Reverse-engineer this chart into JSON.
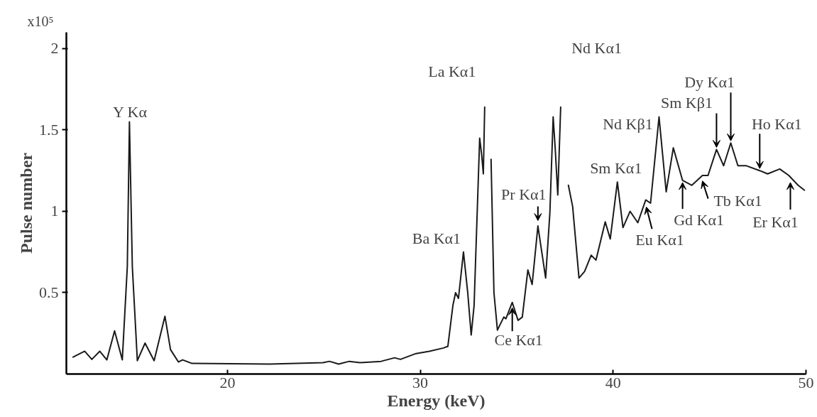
{
  "chart_data": {
    "type": "line",
    "xlabel": "Energy (keV)",
    "ylabel": "Pulse number",
    "xlim": [
      11.65,
      50
    ],
    "ylim": [
      0,
      2.1
    ],
    "xticks": [
      20,
      30,
      40,
      50
    ],
    "yticks": [
      0.5,
      1,
      1.5,
      2
    ],
    "grid": false,
    "marker": "none",
    "line_style": "solid",
    "series": [
      {
        "color": "#1a1a1a",
        "x": [
          12.0,
          12.6,
          12.97,
          13.38,
          13.75,
          14.15,
          14.55,
          14.81,
          14.92,
          15.07,
          15.33,
          15.73,
          16.2,
          16.76,
          17.05,
          17.46,
          17.68,
          18.16,
          22.2,
          24.96,
          25.29,
          25.77,
          26.32,
          26.87,
          27.97,
          28.67,
          28.97,
          29.78,
          30.47,
          31.2,
          31.43,
          31.69,
          31.83,
          31.98,
          32.24,
          32.46,
          32.64,
          32.79,
          33.08,
          33.18,
          33.27,
          33.34,
          33.45,
          33.56,
          33.67,
          33.82,
          34.0,
          34.33,
          34.44,
          34.77,
          35.07,
          35.29,
          35.58,
          35.8,
          36.1,
          36.5,
          36.72,
          36.89,
          37.0,
          37.13,
          37.28,
          37.39,
          37.53,
          37.68,
          37.9,
          38.23,
          38.52,
          38.86,
          39.11,
          39.59,
          39.85,
          40.22,
          40.51,
          40.88,
          41.28,
          41.69,
          41.94,
          42.38,
          42.75,
          43.12,
          43.6,
          44.08,
          44.63,
          44.92,
          45.36,
          45.73,
          46.1,
          46.47,
          46.91,
          47.6,
          48.01,
          48.64,
          49.11,
          49.59,
          49.92
        ],
        "values": [
          0.104,
          0.14,
          0.09,
          0.14,
          0.087,
          0.265,
          0.087,
          0.66,
          1.55,
          0.66,
          0.082,
          0.19,
          0.082,
          0.355,
          0.15,
          0.074,
          0.087,
          0.065,
          0.061,
          0.07,
          0.078,
          0.061,
          0.078,
          0.07,
          0.078,
          0.1,
          0.09,
          0.126,
          0.14,
          0.16,
          0.17,
          0.42,
          0.5,
          0.465,
          0.75,
          0.5,
          0.24,
          0.42,
          1.45,
          1.35,
          1.23,
          1.64,
          null,
          null,
          1.32,
          0.5,
          0.27,
          0.35,
          0.34,
          0.44,
          0.33,
          0.35,
          0.64,
          0.55,
          0.91,
          0.59,
          0.99,
          1.58,
          1.38,
          1.1,
          1.64,
          null,
          null,
          1.16,
          1.03,
          0.59,
          0.63,
          0.73,
          0.7,
          0.935,
          0.83,
          1.18,
          0.9,
          1.0,
          0.93,
          1.07,
          1.05,
          1.58,
          1.12,
          1.39,
          1.19,
          1.16,
          1.22,
          1.22,
          1.38,
          1.28,
          1.42,
          1.28,
          1.28,
          1.25,
          1.23,
          1.26,
          1.22,
          1.16,
          1.13
        ]
      }
    ],
    "annotations": [
      "x10⁵",
      {
        "text": "Y Kα",
        "x": 14.92,
        "y": 1.55
      },
      {
        "text": "Ba Kα1",
        "x": 32.24,
        "y": 0.75
      },
      {
        "text": "La Kα1",
        "x": 33.34,
        "y": 1.64
      },
      {
        "text": "Pr Kα1",
        "x": 36.1,
        "y": 0.93
      },
      {
        "text": "Ce Kα1",
        "x": 34.77,
        "y": 0.42
      },
      "Nd Kα1",
      {
        "text": "Sm Kα1",
        "x": 40.22,
        "y": 1.18
      },
      {
        "text": "Nd Kβ1",
        "x": 42.38,
        "y": 1.58
      },
      {
        "text": "Sm Kβ1",
        "x": 45.36,
        "y": 1.38
      },
      {
        "text": "Dy Kα1",
        "x": 46.1,
        "y": 1.42
      },
      {
        "text": "Ho Kα1",
        "x": 47.6,
        "y": 1.25
      },
      {
        "text": "Eu Kα1",
        "x": 41.72,
        "y": 1.04
      },
      {
        "text": "Gd Kα1",
        "x": 43.6,
        "y": 1.19
      },
      {
        "text": "Tb Kα1",
        "x": 44.63,
        "y": 1.2
      },
      {
        "text": "Er Kα1",
        "x": 49.19,
        "y": 1.19
      }
    ]
  }
}
